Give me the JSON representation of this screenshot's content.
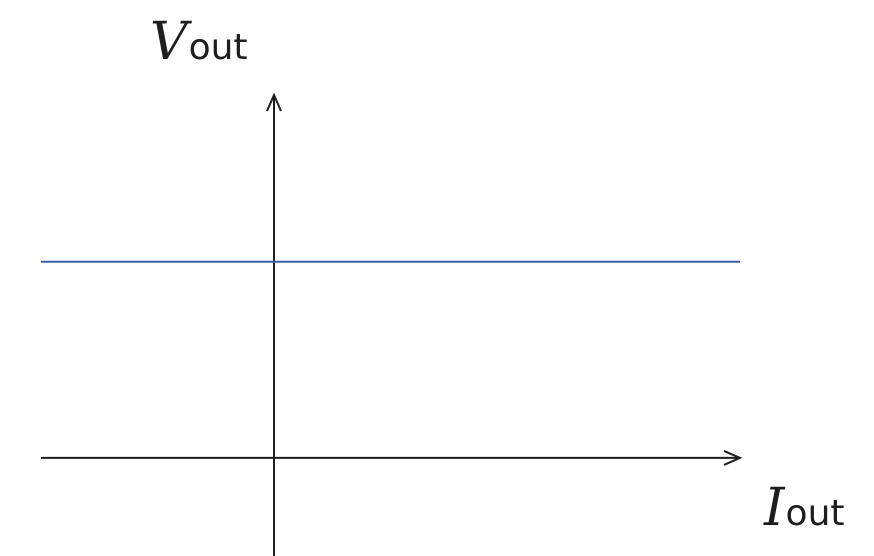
{
  "chart_data": {
    "type": "line",
    "title": "",
    "xlabel": {
      "symbol": "I",
      "subscript": "out"
    },
    "ylabel": {
      "symbol": "V",
      "subscript": "out"
    },
    "xlim": [
      -1,
      2
    ],
    "ylim": [
      -0.5,
      1.85
    ],
    "grid": false,
    "legend": "none",
    "series": [
      {
        "x": [
          -1,
          2
        ],
        "y": [
          1,
          1
        ],
        "color": "#3b5ea5"
      }
    ],
    "axis_color": "#1e1e1e"
  }
}
